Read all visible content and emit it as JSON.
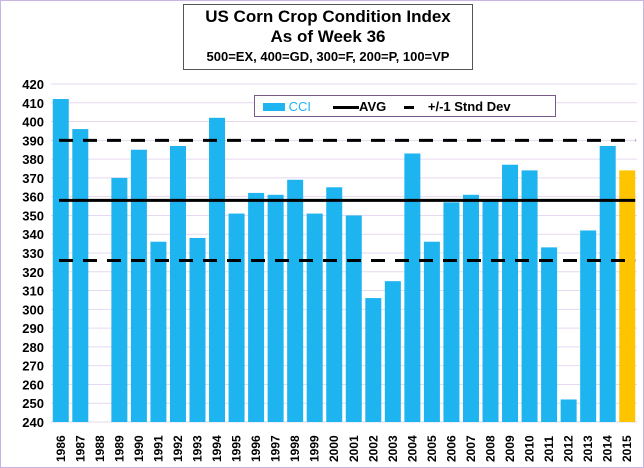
{
  "chart_data": {
    "type": "bar",
    "title": "US Corn Crop Condition Index",
    "subtitle": "As of Week 36",
    "note": "500=EX, 400=GD, 300=F, 200=P, 100=VP",
    "categories": [
      "1986",
      "1987",
      "1988",
      "1989",
      "1990",
      "1991",
      "1992",
      "1993",
      "1994",
      "1995",
      "1996",
      "1997",
      "1998",
      "1999",
      "2000",
      "2001",
      "2002",
      "2003",
      "2004",
      "2005",
      "2006",
      "2007",
      "2008",
      "2009",
      "2010",
      "2011",
      "2012",
      "2013",
      "2014",
      "2015"
    ],
    "series": [
      {
        "name": "CCI",
        "values": [
          412,
          396,
          null,
          370,
          385,
          336,
          387,
          338,
          402,
          351,
          362,
          361,
          369,
          351,
          365,
          350,
          306,
          315,
          383,
          336,
          357,
          361,
          358,
          377,
          374,
          333,
          252,
          342,
          387,
          374
        ]
      }
    ],
    "highlight": {
      "category": "2015",
      "color": "#ffc400"
    },
    "avg": 358,
    "stdev_upper": 390,
    "stdev_lower": 326,
    "legend": [
      "CCI",
      "AVG",
      "+/-1 Stnd Dev"
    ],
    "ylim": [
      240,
      420
    ],
    "ytick_step": 10,
    "colors": {
      "bar": "#1eb4f0",
      "highlight": "#ffc400",
      "avg": "#000000"
    }
  }
}
